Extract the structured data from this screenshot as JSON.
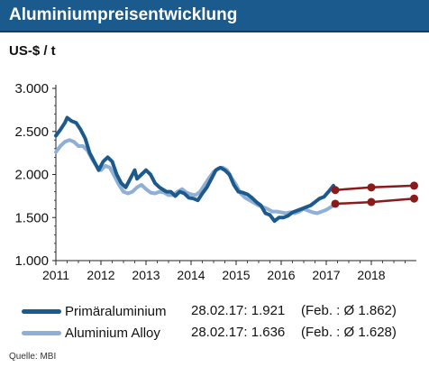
{
  "title": "Aluminiumpreisentwicklung",
  "unit_label": "US-$ / t",
  "source": "Quelle:  MBI",
  "colors": {
    "header_bg": "#1a5a8c",
    "primary": "#1c5a8e",
    "alloy": "#8fb0d4",
    "forecast": "#8b1a1a"
  },
  "legend": [
    {
      "name": "Primäraluminium",
      "value": "28.02.17: 1.921",
      "avg": "(Feb. : Ø 1.862)"
    },
    {
      "name": "Aluminium Alloy",
      "value": "28.02.17: 1.636",
      "avg": "(Feb. : Ø 1.628)"
    }
  ],
  "chart_data": {
    "type": "line",
    "title": "Aluminiumpreisentwicklung",
    "ylabel": "US-$ / t",
    "ylim": [
      1000,
      3000
    ],
    "xlim": [
      2011,
      2019
    ],
    "y_ticks": [
      1000,
      1500,
      2000,
      2500,
      3000
    ],
    "y_tick_labels": [
      "1.000",
      "1.500",
      "2.000",
      "2.500",
      "3.000"
    ],
    "x_ticks": [
      2011,
      2012,
      2013,
      2014,
      2015,
      2016,
      2017,
      2018
    ],
    "x_tick_labels": [
      "2011",
      "2012",
      "2013",
      "2014",
      "2015",
      "2016",
      "2017",
      "2018"
    ],
    "grid": false,
    "series": [
      {
        "name": "Primäraluminium",
        "color": "#1c5a8e",
        "points": [
          [
            2011.0,
            2450
          ],
          [
            2011.1,
            2520
          ],
          [
            2011.2,
            2600
          ],
          [
            2011.25,
            2660
          ],
          [
            2011.35,
            2620
          ],
          [
            2011.45,
            2600
          ],
          [
            2011.55,
            2520
          ],
          [
            2011.65,
            2420
          ],
          [
            2011.75,
            2250
          ],
          [
            2011.85,
            2150
          ],
          [
            2011.95,
            2050
          ],
          [
            2012.05,
            2150
          ],
          [
            2012.15,
            2200
          ],
          [
            2012.25,
            2150
          ],
          [
            2012.35,
            2000
          ],
          [
            2012.45,
            1900
          ],
          [
            2012.55,
            1850
          ],
          [
            2012.65,
            1950
          ],
          [
            2012.75,
            2050
          ],
          [
            2012.8,
            1950
          ],
          [
            2012.9,
            2000
          ],
          [
            2013.0,
            2050
          ],
          [
            2013.1,
            2000
          ],
          [
            2013.2,
            1900
          ],
          [
            2013.3,
            1850
          ],
          [
            2013.45,
            1800
          ],
          [
            2013.55,
            1800
          ],
          [
            2013.65,
            1750
          ],
          [
            2013.75,
            1800
          ],
          [
            2013.85,
            1780
          ],
          [
            2013.95,
            1730
          ],
          [
            2014.05,
            1720
          ],
          [
            2014.15,
            1700
          ],
          [
            2014.25,
            1780
          ],
          [
            2014.35,
            1850
          ],
          [
            2014.45,
            1950
          ],
          [
            2014.55,
            2050
          ],
          [
            2014.65,
            2080
          ],
          [
            2014.75,
            2050
          ],
          [
            2014.85,
            2000
          ],
          [
            2014.95,
            1880
          ],
          [
            2015.05,
            1800
          ],
          [
            2015.15,
            1790
          ],
          [
            2015.25,
            1770
          ],
          [
            2015.35,
            1730
          ],
          [
            2015.45,
            1680
          ],
          [
            2015.55,
            1640
          ],
          [
            2015.65,
            1550
          ],
          [
            2015.75,
            1530
          ],
          [
            2015.85,
            1460
          ],
          [
            2015.95,
            1500
          ],
          [
            2016.05,
            1500
          ],
          [
            2016.15,
            1520
          ],
          [
            2016.25,
            1560
          ],
          [
            2016.35,
            1580
          ],
          [
            2016.45,
            1600
          ],
          [
            2016.55,
            1620
          ],
          [
            2016.65,
            1640
          ],
          [
            2016.75,
            1680
          ],
          [
            2016.85,
            1720
          ],
          [
            2016.95,
            1740
          ],
          [
            2017.05,
            1800
          ],
          [
            2017.16,
            1870
          ]
        ]
      },
      {
        "name": "Aluminium Alloy",
        "color": "#8fb0d4",
        "points": [
          [
            2011.0,
            2260
          ],
          [
            2011.1,
            2330
          ],
          [
            2011.2,
            2380
          ],
          [
            2011.3,
            2400
          ],
          [
            2011.4,
            2380
          ],
          [
            2011.5,
            2330
          ],
          [
            2011.6,
            2330
          ],
          [
            2011.7,
            2280
          ],
          [
            2011.8,
            2180
          ],
          [
            2011.9,
            2100
          ],
          [
            2012.0,
            2050
          ],
          [
            2012.1,
            2100
          ],
          [
            2012.2,
            2080
          ],
          [
            2012.3,
            1980
          ],
          [
            2012.4,
            1880
          ],
          [
            2012.5,
            1800
          ],
          [
            2012.6,
            1780
          ],
          [
            2012.7,
            1800
          ],
          [
            2012.8,
            1850
          ],
          [
            2012.9,
            1880
          ],
          [
            2013.0,
            1830
          ],
          [
            2013.1,
            1790
          ],
          [
            2013.2,
            1780
          ],
          [
            2013.3,
            1800
          ],
          [
            2013.4,
            1790
          ],
          [
            2013.5,
            1760
          ],
          [
            2013.6,
            1760
          ],
          [
            2013.7,
            1800
          ],
          [
            2013.8,
            1830
          ],
          [
            2013.9,
            1790
          ],
          [
            2014.0,
            1770
          ],
          [
            2014.1,
            1760
          ],
          [
            2014.2,
            1800
          ],
          [
            2014.3,
            1880
          ],
          [
            2014.4,
            1960
          ],
          [
            2014.5,
            2030
          ],
          [
            2014.6,
            2070
          ],
          [
            2014.7,
            2080
          ],
          [
            2014.8,
            2050
          ],
          [
            2014.9,
            1960
          ],
          [
            2015.0,
            1880
          ],
          [
            2015.1,
            1780
          ],
          [
            2015.2,
            1730
          ],
          [
            2015.3,
            1700
          ],
          [
            2015.4,
            1670
          ],
          [
            2015.5,
            1640
          ],
          [
            2015.6,
            1620
          ],
          [
            2015.7,
            1600
          ],
          [
            2015.8,
            1570
          ],
          [
            2015.9,
            1570
          ],
          [
            2016.0,
            1560
          ],
          [
            2016.1,
            1550
          ],
          [
            2016.2,
            1560
          ],
          [
            2016.3,
            1550
          ],
          [
            2016.4,
            1570
          ],
          [
            2016.5,
            1600
          ],
          [
            2016.6,
            1580
          ],
          [
            2016.7,
            1560
          ],
          [
            2016.8,
            1550
          ],
          [
            2016.9,
            1570
          ],
          [
            2017.0,
            1590
          ],
          [
            2017.16,
            1640
          ]
        ]
      },
      {
        "name": "",
        "color": "#8b1a1a",
        "style": "forecast-markers",
        "points": [
          [
            2017.2,
            1820
          ],
          [
            2018.0,
            1850
          ],
          [
            2018.95,
            1870
          ]
        ]
      },
      {
        "name": "",
        "color": "#8b1a1a",
        "style": "forecast-markers",
        "points": [
          [
            2017.2,
            1660
          ],
          [
            2018.0,
            1680
          ],
          [
            2018.95,
            1720
          ]
        ]
      }
    ]
  }
}
